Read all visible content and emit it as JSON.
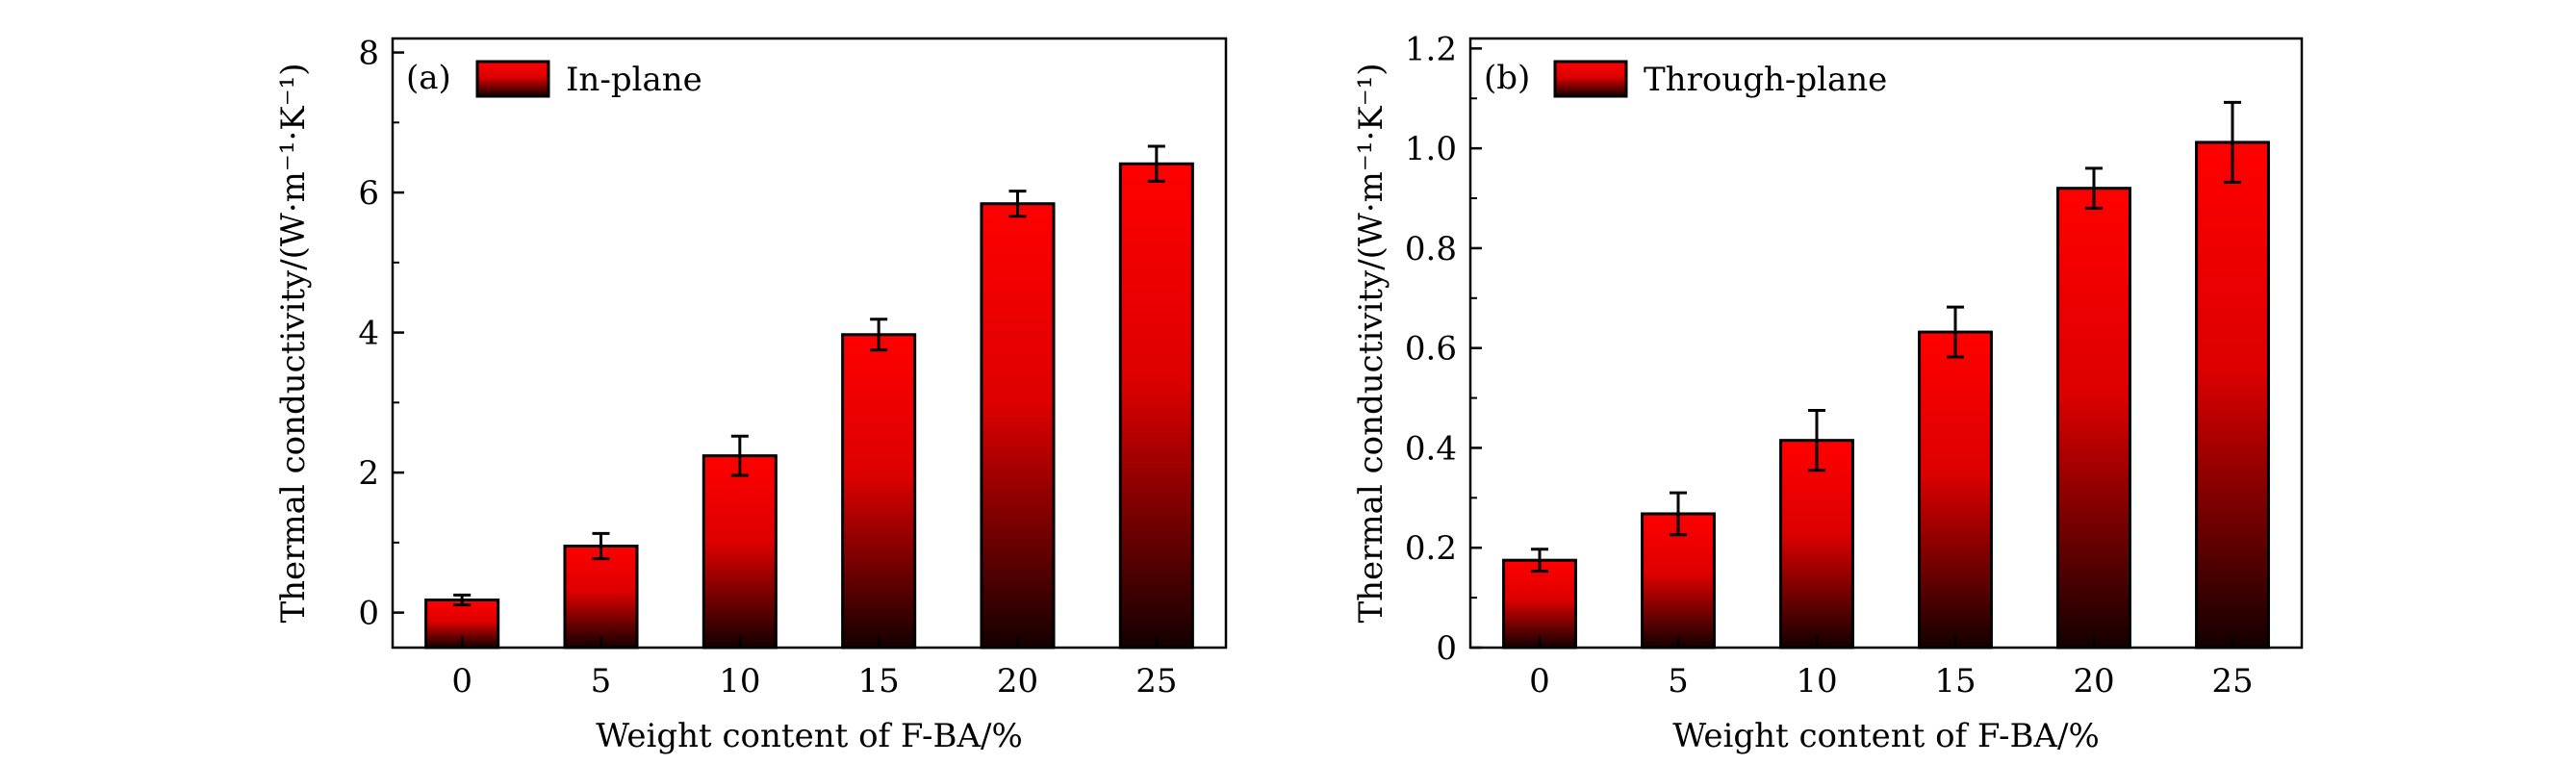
{
  "figure": {
    "colors": {
      "bar_top": "#ff0000",
      "bar_bottom": "#1a0000",
      "stroke": "#000000"
    }
  },
  "chart_data": [
    {
      "type": "bar",
      "panel": "(a)",
      "legend": "In-plane",
      "categories": [
        "0",
        "5",
        "10",
        "15",
        "20",
        "25"
      ],
      "values": [
        0.18,
        0.95,
        2.24,
        3.97,
        5.84,
        6.41
      ],
      "errors": [
        0.07,
        0.18,
        0.28,
        0.22,
        0.18,
        0.25
      ],
      "xlabel": "Weight content of F-BA/%",
      "ylabel": "Thermal conductivity/(W·m⁻¹·K⁻¹)",
      "ylim": [
        -0.5,
        8.2
      ],
      "yticks": [
        0,
        2,
        4,
        6,
        8
      ],
      "ytick_labels": [
        "0",
        "2",
        "4",
        "6",
        "8"
      ],
      "legend_position": "top-left"
    },
    {
      "type": "bar",
      "panel": "(b)",
      "legend": "Through-plane",
      "categories": [
        "0",
        "5",
        "10",
        "15",
        "20",
        "25"
      ],
      "values": [
        0.175,
        0.268,
        0.415,
        0.632,
        0.92,
        1.012
      ],
      "errors": [
        0.022,
        0.042,
        0.06,
        0.05,
        0.04,
        0.08
      ],
      "xlabel": "Weight content of F-BA/%",
      "ylabel": "Thermal conductivity/(W·m⁻¹·K⁻¹)",
      "ylim": [
        0,
        1.22
      ],
      "yticks": [
        0,
        0.2,
        0.4,
        0.6,
        0.8,
        1.0,
        1.2
      ],
      "ytick_labels": [
        "0",
        "0.2",
        "0.4",
        "0.6",
        "0.8",
        "1.0",
        "1.2"
      ],
      "legend_position": "top-left"
    }
  ]
}
